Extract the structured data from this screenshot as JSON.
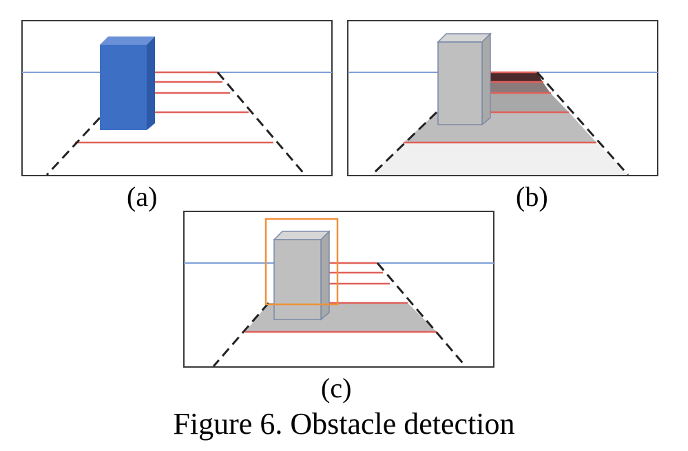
{
  "figure": {
    "caption": "Figure 6. Obstacle detection",
    "panels": [
      {
        "id": "a",
        "label": "(a)"
      },
      {
        "id": "b",
        "label": "(b)"
      },
      {
        "id": "c",
        "label": "(c)"
      }
    ]
  },
  "colors": {
    "frame": "#3a3a3a",
    "horizon": "#7fa0d8",
    "scan_line": "#e0605a",
    "road_edge": "#222222",
    "obstacle_blue": "#3d6fc5",
    "obstacle_gray": "#bfbfbf",
    "bounding_box": "#f0903a",
    "free_space_light": "#f0f0f0",
    "free_space_gray": "#bdbdbd",
    "free_space_dark": "#4a2a2a"
  }
}
